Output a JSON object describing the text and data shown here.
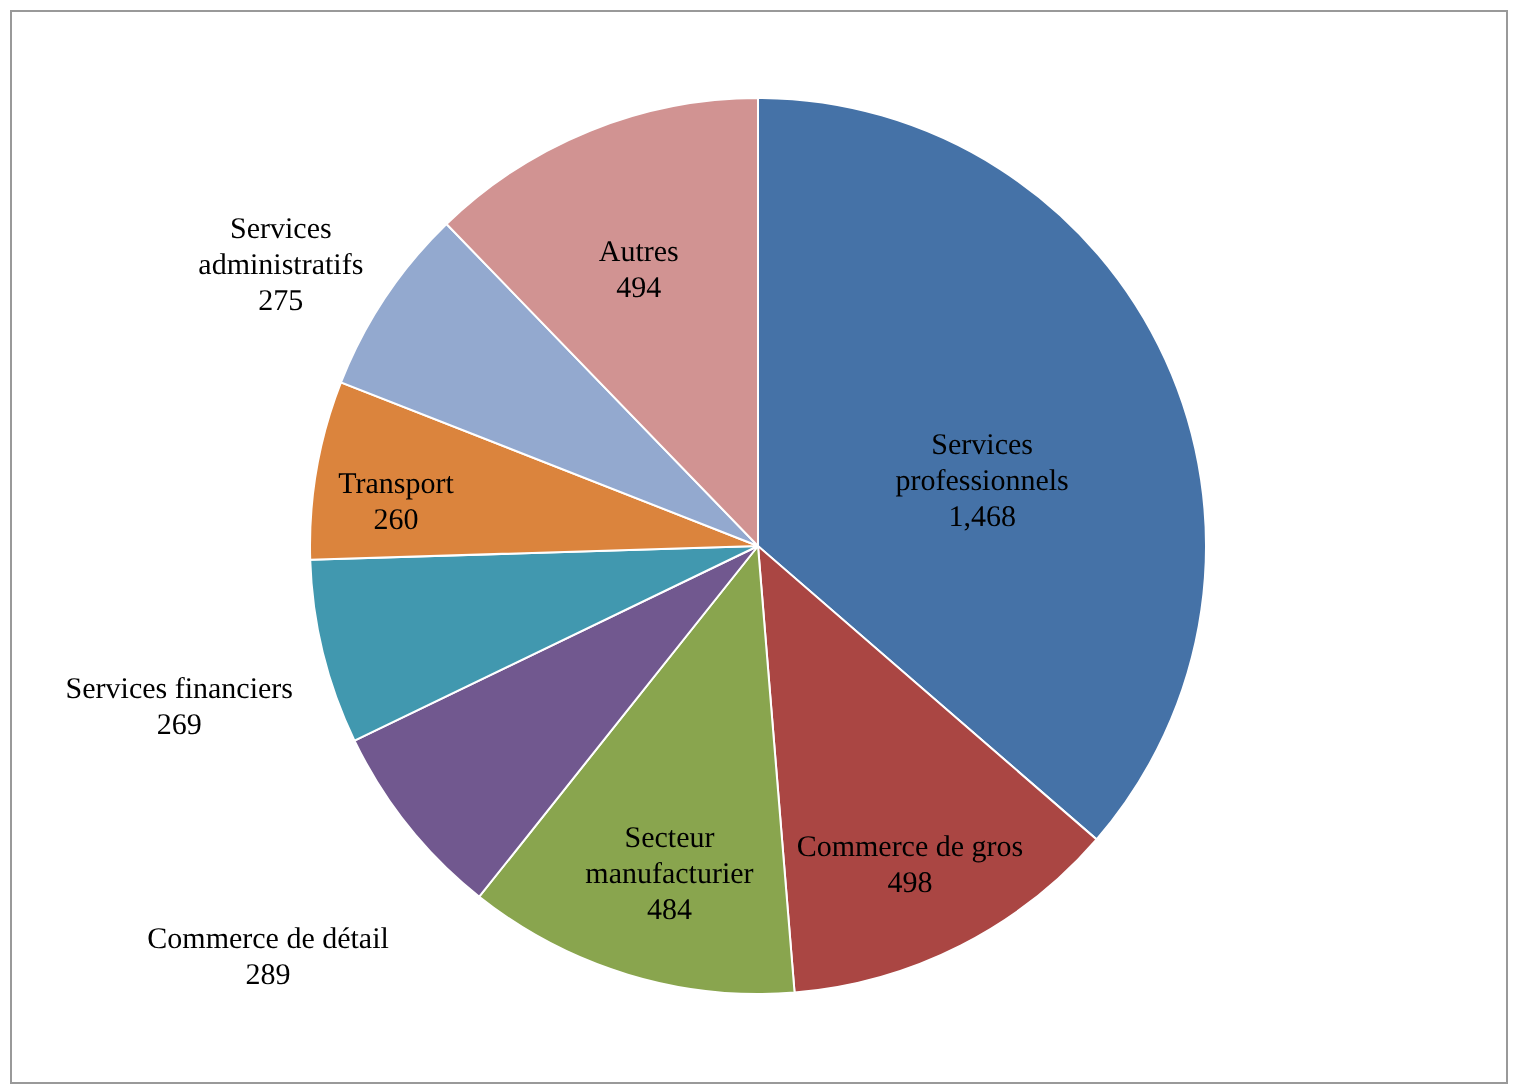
{
  "chart_data": {
    "type": "pie",
    "categories": [
      "Services professionnels",
      "Commerce de gros",
      "Secteur manufacturier",
      "Commerce de détail",
      "Services financiers",
      "Transport",
      "Services administratifs",
      "Autres"
    ],
    "values": [
      1468,
      498,
      484,
      289,
      269,
      260,
      275,
      494
    ],
    "value_labels": [
      "1,468",
      "498",
      "484",
      "289",
      "269",
      "260",
      "275",
      "494"
    ],
    "colors": [
      "#4572a7",
      "#aa4643",
      "#89a54e",
      "#71588f",
      "#4198af",
      "#db843d",
      "#93a9cf",
      "#d19392"
    ],
    "legend": false
  }
}
